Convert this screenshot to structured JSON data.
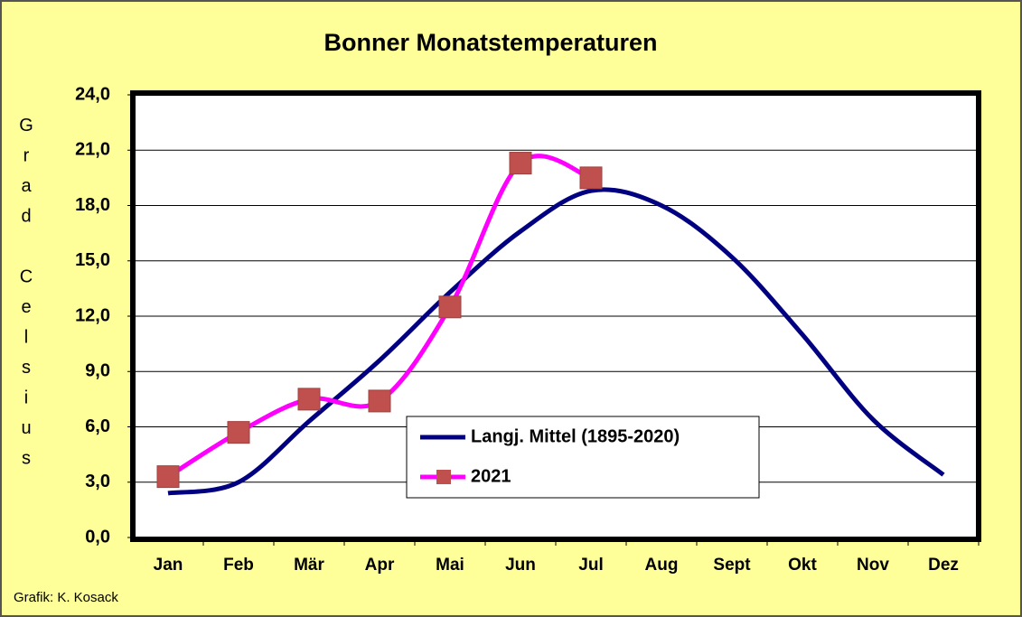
{
  "chart_data": {
    "type": "line",
    "title": "Bonner Monatstemperaturen",
    "y_label": "Grad Celsius",
    "footer": "Grafik:  K. Kosack",
    "categories": [
      "Jan",
      "Feb",
      "Mär",
      "Apr",
      "Mai",
      "Jun",
      "Jul",
      "Aug",
      "Sept",
      "Okt",
      "Nov",
      "Dez"
    ],
    "series": [
      {
        "name": "Langj. Mittel (1895-2020)",
        "color": "#000080",
        "values": [
          2.4,
          3.0,
          6.3,
          9.6,
          13.3,
          16.6,
          18.8,
          18.0,
          15.2,
          11.0,
          6.4,
          3.4
        ]
      },
      {
        "name": "2021",
        "color": "#ff00ff",
        "marker_color": "#c0504d",
        "values": [
          3.3,
          5.7,
          7.5,
          7.4,
          12.5,
          20.3,
          19.5,
          null,
          null,
          null,
          null,
          null
        ]
      }
    ],
    "ylim": [
      0,
      24
    ],
    "yticks": [
      {
        "value": 0,
        "label": "0,0"
      },
      {
        "value": 3,
        "label": "3,0"
      },
      {
        "value": 6,
        "label": "6,0"
      },
      {
        "value": 9,
        "label": "9,0"
      },
      {
        "value": 12,
        "label": "12,0"
      },
      {
        "value": 15,
        "label": "15,0"
      },
      {
        "value": 18,
        "label": "18,0"
      },
      {
        "value": 21,
        "label": "21,0"
      },
      {
        "value": 24,
        "label": "24,0"
      }
    ],
    "grid": true
  }
}
